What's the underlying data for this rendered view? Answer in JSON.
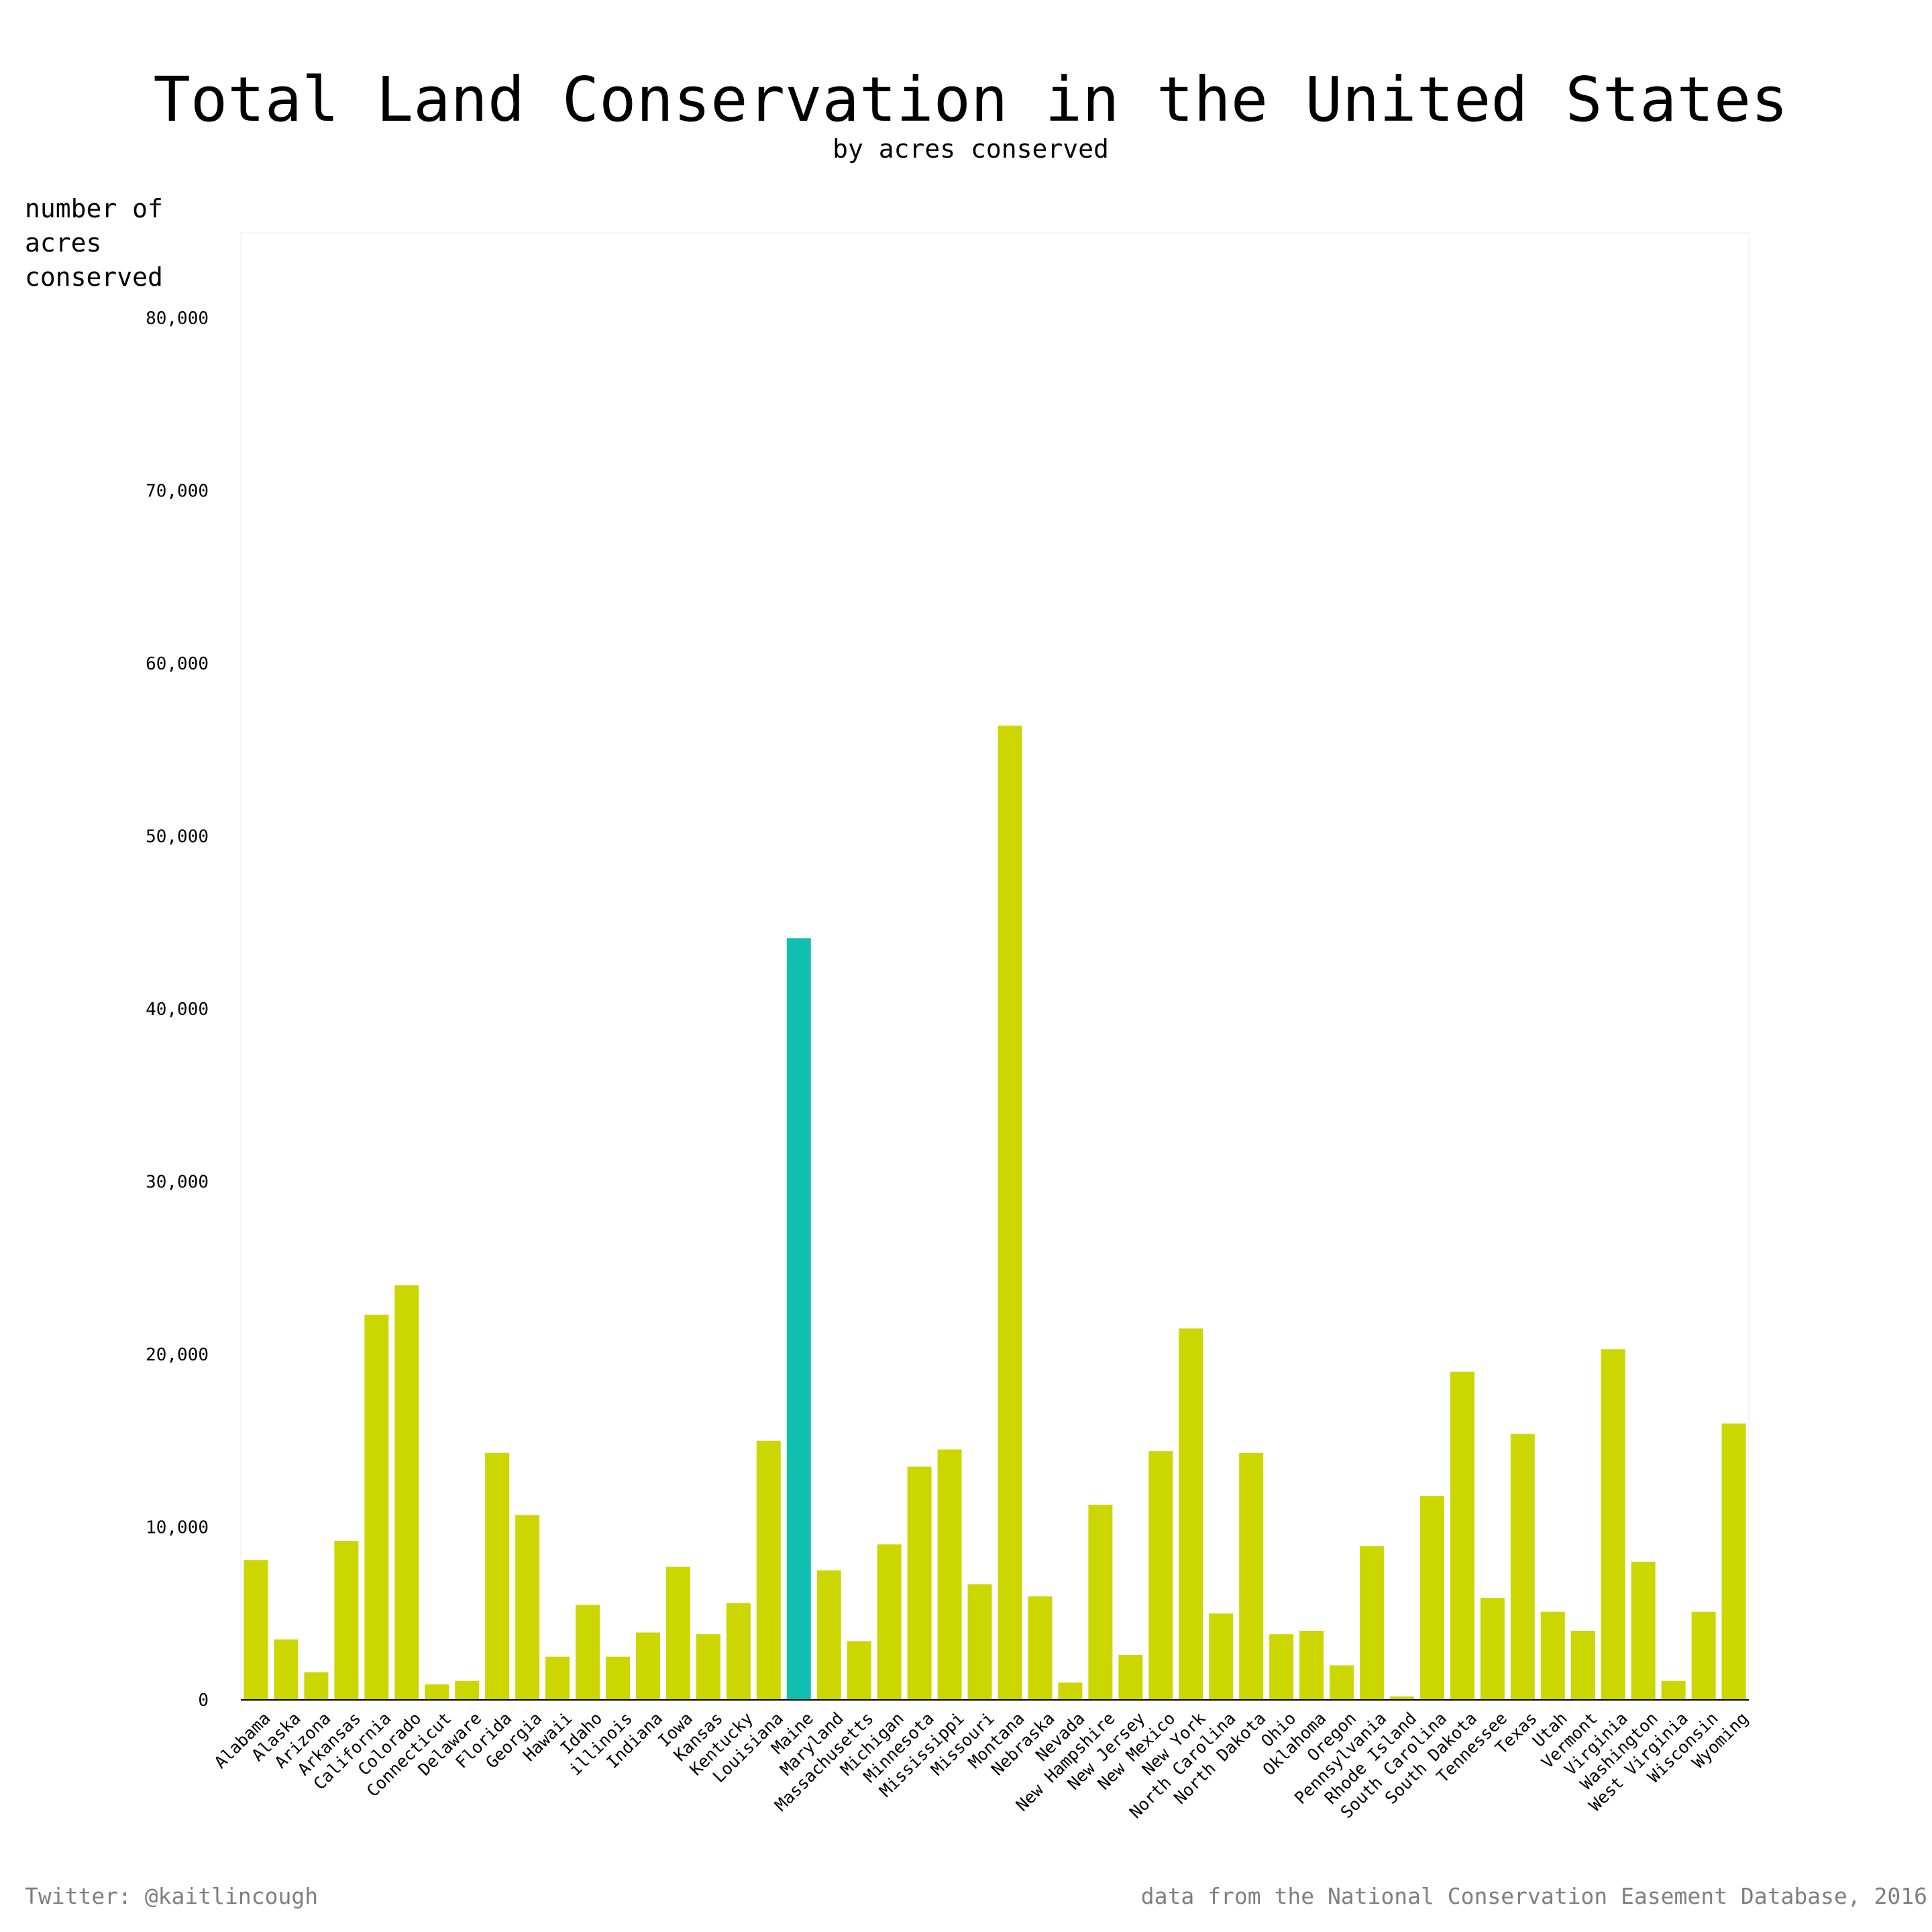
{
  "chart_data": {
    "type": "bar",
    "title": "Total Land Conservation in the United States",
    "subtitle": "by acres conserved",
    "ylabel": "number of acres conserved",
    "ylim": [
      0,
      85000
    ],
    "yticks": [
      0,
      10000,
      20000,
      30000,
      40000,
      50000,
      60000,
      70000,
      80000
    ],
    "ytick_labels": [
      "0",
      "10,000",
      "20,000",
      "30,000",
      "40,000",
      "50,000",
      "60,000",
      "70,000",
      "80,000"
    ],
    "categories": [
      "Alabama",
      "Alaska",
      "Arizona",
      "Arkansas",
      "California",
      "Colorado",
      "Connecticut",
      "Delaware",
      "Florida",
      "Georgia",
      "Hawaii",
      "Idaho",
      "illinois",
      "Indiana",
      "Iowa",
      "Kansas",
      "Kentucky",
      "Louisiana",
      "Maine",
      "Maryland",
      "Massachusetts",
      "Michigan",
      "Minnesota",
      "Mississippi",
      "Missouri",
      "Montana",
      "Nebraska",
      "Nevada",
      "New Hampshire",
      "New Jersey",
      "New Mexico",
      "New York",
      "North Carolina",
      "North Dakota",
      "Ohio",
      "Oklahoma",
      "Oregon",
      "Pennsylvania",
      "Rhode Island",
      "South Carolina",
      "South Dakota",
      "Tennessee",
      "Texas",
      "Utah",
      "Vermont",
      "Virginia",
      "Washington",
      "West Virginia",
      "Wisconsin",
      "Wyoming"
    ],
    "values": [
      8100,
      3500,
      1600,
      9200,
      22300,
      24000,
      900,
      1100,
      14300,
      10700,
      2500,
      5500,
      2500,
      3900,
      7700,
      3800,
      5600,
      15000,
      44100,
      7500,
      3400,
      9000,
      13500,
      14500,
      6700,
      56400,
      6000,
      1000,
      11300,
      2600,
      14400,
      21500,
      5000,
      14300,
      3800,
      4000,
      2000,
      8900,
      200,
      11800,
      19000,
      5900,
      15400,
      5100,
      4000,
      20300,
      8000,
      1100,
      5100,
      16000
    ],
    "highlight_category": "Maine",
    "grid": false,
    "legend": "none",
    "colors": {
      "bar": "#ccd600",
      "highlight": "#10bfb0",
      "axis": "#000000",
      "footer": "#7f7f7f",
      "plot_border": "#f5f5f5"
    }
  },
  "footer": {
    "left": "Twitter: @kaitlincough",
    "right": "data from the National Conservation Easement Database, 2016"
  }
}
